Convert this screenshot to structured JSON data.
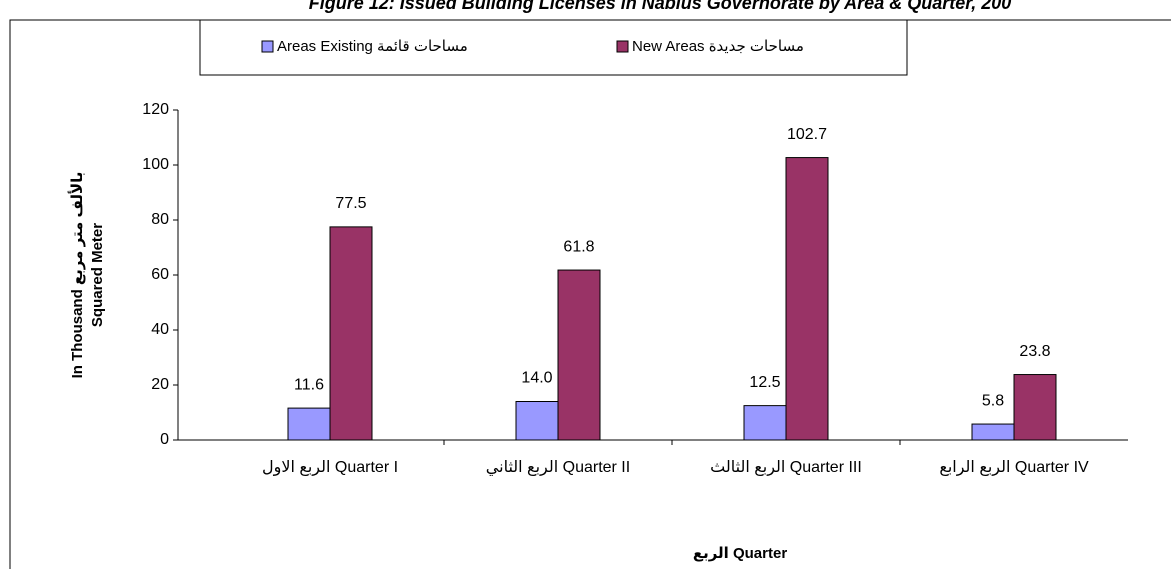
{
  "chart_data": {
    "type": "bar",
    "title": "Figure 12: Issued Building Licenses in Nablus Governorate by Area & Quarter, 200",
    "categories": [
      "الربع الاول Quarter I",
      "الربع الثاني Quarter II",
      "الربع الثالث Quarter III",
      "الربع الرابع Quarter IV"
    ],
    "series": [
      {
        "name": "Areas Existing    مساحات قائمة",
        "color": "#9999ff",
        "values": [
          11.6,
          14.0,
          12.5,
          5.8
        ],
        "value_labels": [
          "11.6",
          "14.0",
          "12.5",
          "5.8"
        ]
      },
      {
        "name": "New Areas  مساحات جديدة",
        "color": "#993366",
        "values": [
          77.5,
          61.8,
          102.7,
          23.8
        ],
        "value_labels": [
          "77.5",
          "61.8",
          "102.7",
          "23.8"
        ]
      }
    ],
    "xlabel": "الربع Quarter",
    "ylabel": [
      "In Thousand بالألف متر مربع",
      "Squared Meter"
    ],
    "ylim": [
      0,
      120
    ],
    "yticks": [
      0,
      20,
      40,
      60,
      80,
      100,
      120
    ],
    "legend": "top"
  }
}
